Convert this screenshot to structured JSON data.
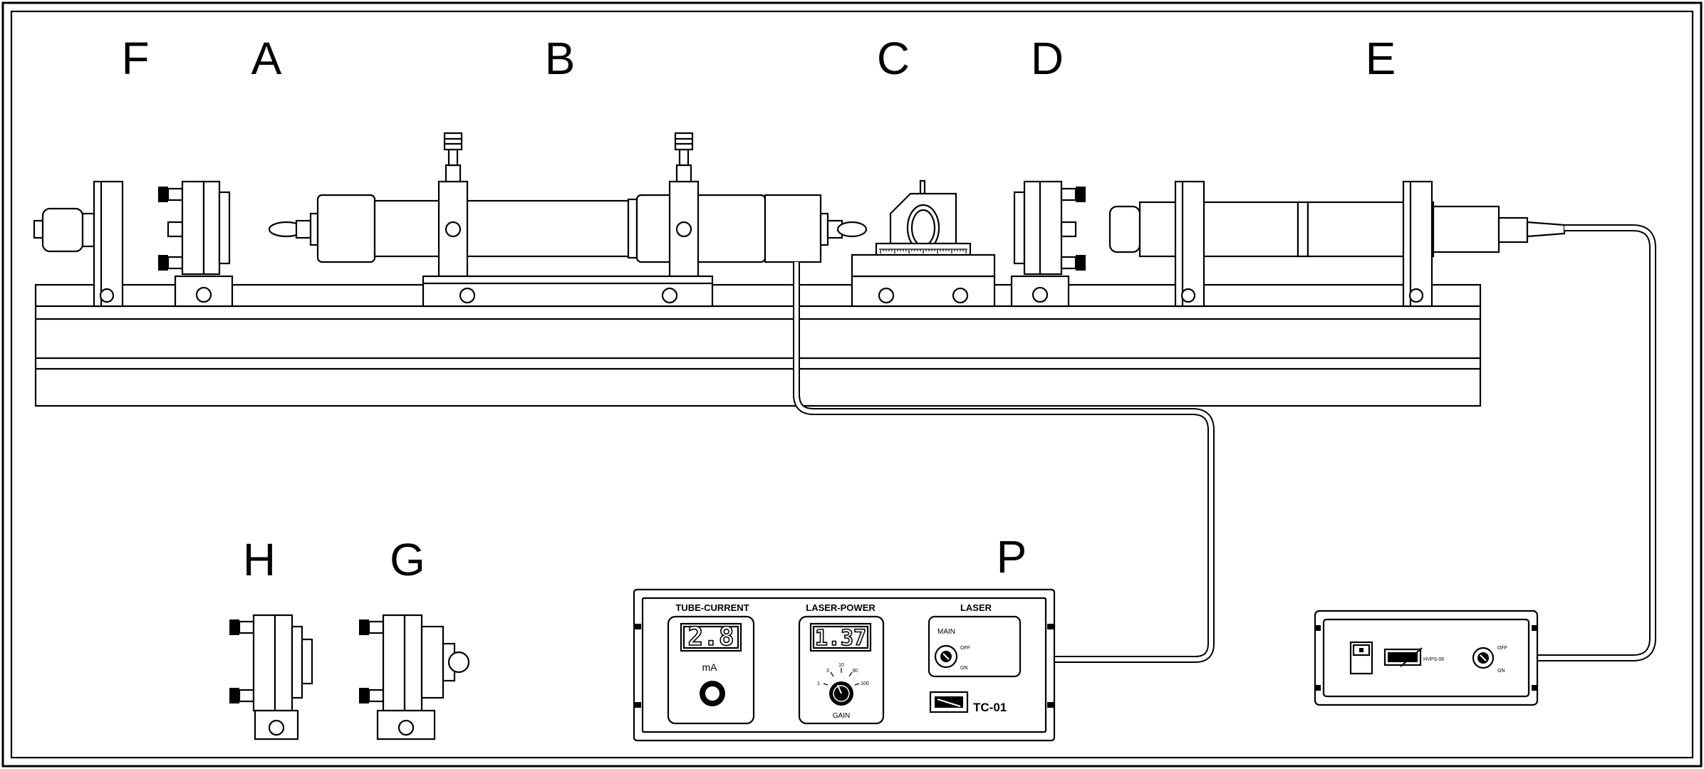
{
  "labels": {
    "F": "F",
    "A": "A",
    "B": "B",
    "C": "C",
    "D": "D",
    "E": "E",
    "H": "H",
    "G": "G",
    "P": "P"
  },
  "controller": {
    "tube_current_title": "TUBE-CURRENT",
    "tube_current_value": "2.8",
    "tube_current_unit": "mA",
    "laser_power_title": "LASER-POWER",
    "laser_power_value": "1.37",
    "gain_label": "GAIN",
    "gain_scale": [
      "1",
      "3",
      "10",
      "30",
      "100"
    ],
    "laser_title": "LASER",
    "main_label": "MAIN",
    "off_label": "OFF",
    "on_label": "ON",
    "model": "TC-01"
  },
  "psu": {
    "model": "HVPS-06",
    "off_label": "OFF",
    "on_label": "ON"
  }
}
